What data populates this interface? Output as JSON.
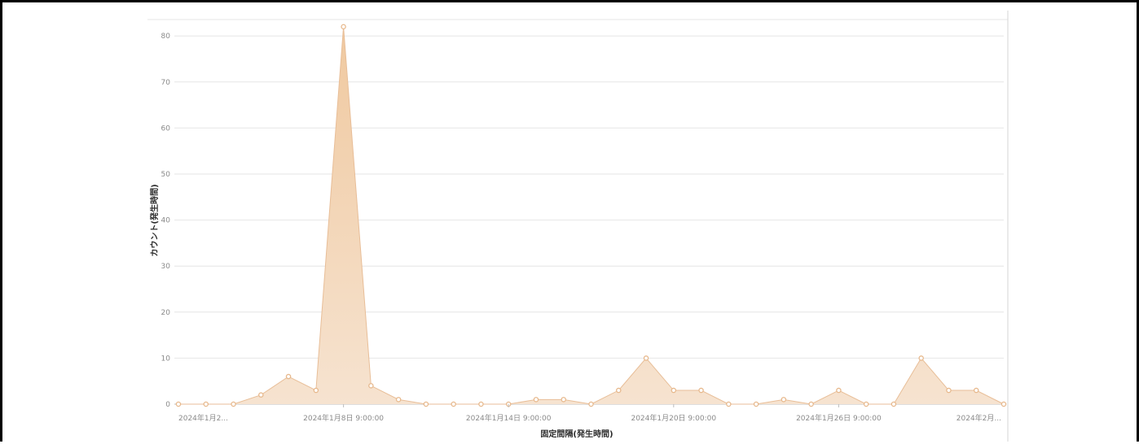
{
  "chart_data": {
    "type": "area",
    "xlabel": "固定間隔(発生時間)",
    "ylabel": "カウント(発生時間)",
    "ylim": [
      0,
      84
    ],
    "yticks": [
      0,
      10,
      20,
      30,
      40,
      50,
      60,
      70,
      80
    ],
    "x_tick_labels": [
      {
        "index": 0,
        "label": "2024年1月2..."
      },
      {
        "index": 6,
        "label": "2024年1月8日 9:00:00"
      },
      {
        "index": 12,
        "label": "2024年1月14日 9:00:00"
      },
      {
        "index": 18,
        "label": "2024年1月20日 9:00:00"
      },
      {
        "index": 24,
        "label": "2024年1月26日 9:00:00"
      },
      {
        "index": 30,
        "label": "2024年2月..."
      }
    ],
    "values": [
      0,
      0,
      0,
      2,
      6,
      3,
      82,
      4,
      1,
      0,
      0,
      0,
      0,
      1,
      1,
      0,
      3,
      10,
      3,
      3,
      0,
      0,
      1,
      0,
      3,
      0,
      0,
      10,
      3,
      3,
      0
    ],
    "grid": true,
    "legend": "none",
    "colors": {
      "fill_top": "#f0c9a0",
      "fill_bottom": "#f6e3d0",
      "line": "#e8be98",
      "marker": "#e7b88c",
      "grid": "#e6e6e6",
      "axis": "#bdbdbd"
    }
  }
}
